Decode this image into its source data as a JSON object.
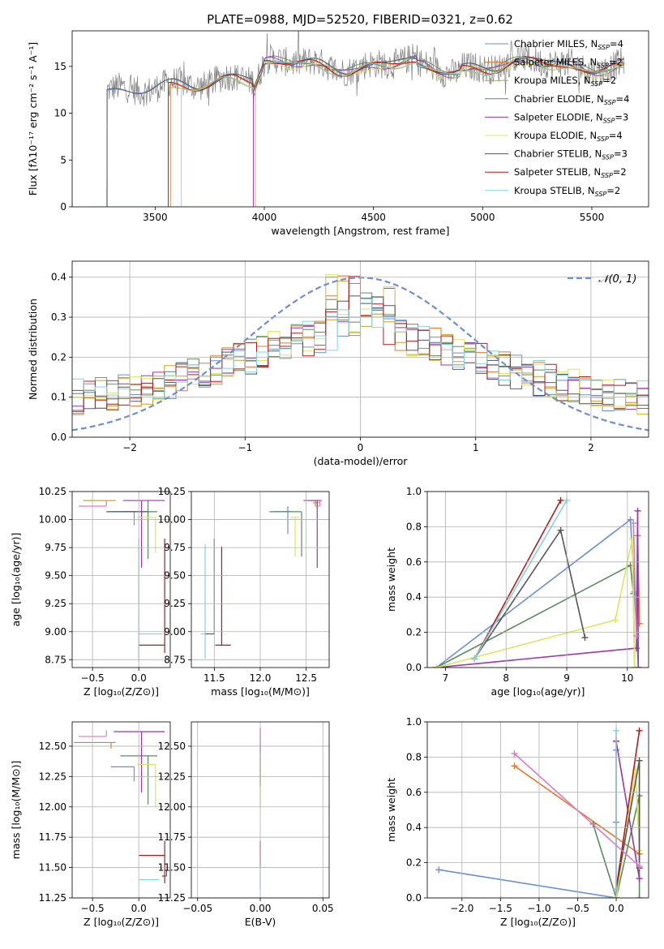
{
  "figure": {
    "title": "PLATE=0988, MJD=52520, FIBERID=0321, z=0.62"
  },
  "legend": [
    {
      "name": "Chabrier MILES, N",
      "sub": "SSP",
      "eq": "=4",
      "color": "#6b8fd6"
    },
    {
      "name": "Salpeter MILES, N",
      "sub": "SSP",
      "eq": "=2",
      "color": "#e07a2e"
    },
    {
      "name": "Kroupa MILES, N",
      "sub": "SSP",
      "eq": "=2",
      "color": "#c9a227"
    },
    {
      "name": "Chabrier ELODIE, N",
      "sub": "SSP",
      "eq": "=4",
      "color": "#5c8a5c"
    },
    {
      "name": "Salpeter ELODIE, N",
      "sub": "SSP",
      "eq": "=3",
      "color": "#9b34b0"
    },
    {
      "name": "Kroupa ELODIE, N",
      "sub": "SSP",
      "eq": "=4",
      "color": "#d9e85c"
    },
    {
      "name": "Chabrier STELIB, N",
      "sub": "SSP",
      "eq": "=3",
      "color": "#555555"
    },
    {
      "name": "Salpeter STELIB, N",
      "sub": "SSP",
      "eq": "=2",
      "color": "#b01c1c"
    },
    {
      "name": "Kroupa STELIB, N",
      "sub": "SSP",
      "eq": "=2",
      "color": "#7fd6de"
    }
  ],
  "chart_data": [
    {
      "id": "spectrum",
      "type": "line",
      "xlabel": "wavelength [Angstrom, rest frame]",
      "ylabel": "Flux [fλ10⁻¹⁷ erg cm⁻² s⁻¹ A⁻¹]",
      "xlim": [
        3120,
        5760
      ],
      "ylim": [
        0,
        18.8
      ],
      "xticks": [
        3500,
        4000,
        4500,
        5000,
        5500
      ],
      "yticks": [
        0,
        5,
        10,
        15
      ],
      "data_color": "#808080",
      "model_starts": [
        3280,
        3570,
        3560,
        3960,
        3950,
        3960,
        3280,
        3560,
        3620
      ],
      "data_x_range": [
        3200,
        5650
      ]
    },
    {
      "id": "residuals",
      "type": "step",
      "xlabel": "(data-model)/error",
      "ylabel": "Normed distribution",
      "xlim": [
        -2.5,
        2.5
      ],
      "ylim": [
        0,
        0.44
      ],
      "xticks": [
        -2,
        -1,
        0,
        1,
        2
      ],
      "yticks": [
        0.0,
        0.1,
        0.2,
        0.3,
        0.4
      ],
      "grid": true,
      "reference": {
        "name": "𝒩(0, 1)",
        "mean": 0,
        "sigma": 1,
        "color": "#6b8fd6",
        "style": "dashed"
      },
      "bin_width": 0.1
    },
    {
      "id": "age-vs-Z",
      "type": "errorbar",
      "xlabel": "Z [log₁₀(Z/Z⊙)]",
      "ylabel": "age  [log₁₀(age/yr)]",
      "xlim": [
        -0.72,
        0.34
      ],
      "ylim": [
        8.68,
        10.25
      ],
      "xticks": [
        -0.5,
        0.0
      ],
      "yticks": [
        8.75,
        9.0,
        9.25,
        9.5,
        9.75,
        10.0,
        10.25
      ],
      "points": [
        {
          "x": -0.05,
          "y": 10.07,
          "xerr": [
            0.25,
            0.0
          ],
          "yerr": [
            0.12,
            0.0
          ],
          "color": "#6b8fd6"
        },
        {
          "x": -0.3,
          "y": 10.17,
          "xerr": [
            0.3,
            0.05
          ],
          "yerr": [
            0.0,
            0.0
          ],
          "color": "#e07a2e"
        },
        {
          "x": -0.3,
          "y": 10.17,
          "xerr": [
            0.3,
            0.05
          ],
          "yerr": [
            0.0,
            0.0
          ],
          "color": "#c9a227"
        },
        {
          "x": 0.1,
          "y": 10.07,
          "xerr": [
            0.25,
            0.1
          ],
          "yerr": [
            0.42,
            0.1
          ],
          "color": "#5c8a5c"
        },
        {
          "x": 0.03,
          "y": 10.17,
          "xerr": [
            0.2,
            0.25
          ],
          "yerr": [
            0.6,
            0.0
          ],
          "color": "#9b34b0"
        },
        {
          "x": 0.18,
          "y": 10.02,
          "xerr": [
            0.2,
            0.0
          ],
          "yerr": [
            0.32,
            0.0
          ],
          "color": "#d9e85c"
        },
        {
          "x": -0.05,
          "y": 10.07,
          "xerr": [
            0.3,
            0.15
          ],
          "yerr": [
            0.0,
            0.0
          ],
          "color": "#555555"
        },
        {
          "x": 0.28,
          "y": 8.88,
          "xerr": [
            0.28,
            0.0
          ],
          "yerr": [
            0.07,
            0.95
          ],
          "color": "#b01c1c"
        },
        {
          "x": 0.0,
          "y": 8.98,
          "xerr": [
            0.0,
            0.26
          ],
          "yerr": [
            0.25,
            0.85
          ],
          "color": "#7fd6de"
        },
        {
          "x": -0.35,
          "y": 10.12,
          "xerr": [
            0.3,
            0.0
          ],
          "yerr": [
            0.0,
            0.05
          ],
          "color": "#e377c2"
        }
      ]
    },
    {
      "id": "age-vs-mass",
      "type": "errorbar",
      "xlabel": "mass [log₁₀(M/M⊙)]",
      "ylabel": "",
      "xlim": [
        11.25,
        12.75
      ],
      "ylim": [
        8.68,
        10.25
      ],
      "xticks": [
        11.5,
        12.0,
        12.5
      ],
      "yticks": [
        8.75,
        9.0,
        9.25,
        9.5,
        9.75,
        10.0,
        10.25
      ],
      "points": [
        {
          "x": 12.3,
          "y": 10.07,
          "xerr": [
            0.15,
            0.05
          ],
          "yerr": [
            0.2,
            0.05
          ],
          "color": "#6b8fd6"
        },
        {
          "x": 12.6,
          "y": 10.17,
          "xerr": [
            0.05,
            0.05
          ],
          "yerr": [
            0.05,
            0.0
          ],
          "color": "#e07a2e"
        },
        {
          "x": 12.62,
          "y": 10.15,
          "xerr": [
            0.05,
            0.03
          ],
          "yerr": [
            0.05,
            0.0
          ],
          "color": "#c9a227"
        },
        {
          "x": 12.45,
          "y": 10.07,
          "xerr": [
            0.35,
            0.0
          ],
          "yerr": [
            0.4,
            0.0
          ],
          "color": "#5c8a5c"
        },
        {
          "x": 12.62,
          "y": 10.17,
          "xerr": [
            0.15,
            0.05
          ],
          "yerr": [
            0.6,
            0.0
          ],
          "color": "#9b34b0"
        },
        {
          "x": 12.38,
          "y": 10.02,
          "xerr": [
            0.05,
            0.05
          ],
          "yerr": [
            0.35,
            0.0
          ],
          "color": "#d9e85c"
        },
        {
          "x": 11.5,
          "y": 8.98,
          "xerr": [
            0.1,
            0.0
          ],
          "yerr": [
            0.0,
            0.85
          ],
          "color": "#555555"
        },
        {
          "x": 11.58,
          "y": 8.88,
          "xerr": [
            0.07,
            0.1
          ],
          "yerr": [
            0.0,
            0.88
          ],
          "color": "#b01c1c"
        },
        {
          "x": 11.4,
          "y": 8.98,
          "xerr": [
            0.05,
            0.0
          ],
          "yerr": [
            0.22,
            0.8
          ],
          "color": "#7fd6de"
        },
        {
          "x": 12.65,
          "y": 10.12,
          "xerr": [
            0.05,
            0.0
          ],
          "yerr": [
            0.0,
            0.05
          ],
          "color": "#e377c2"
        }
      ]
    },
    {
      "id": "weight-vs-age",
      "type": "line",
      "xlabel": "age  [log₁₀(age/yr)]",
      "ylabel": "mass weight",
      "xlim": [
        6.7,
        10.35
      ],
      "ylim": [
        0,
        1.0
      ],
      "xticks": [
        7,
        8,
        9,
        10
      ],
      "yticks": [
        0.0,
        0.2,
        0.4,
        0.6,
        0.8,
        1.0
      ],
      "grid": true,
      "series": [
        {
          "color": "#6b8fd6",
          "x": [
            6.85,
            10.05,
            10.12,
            10.18
          ],
          "y": [
            0.0,
            0.84,
            0.43,
            0.0
          ]
        },
        {
          "color": "#e07a2e",
          "x": [
            10.17,
            10.2
          ],
          "y": [
            0.75,
            0.25
          ]
        },
        {
          "color": "#5c8a5c",
          "x": [
            6.85,
            10.05,
            10.1,
            10.12
          ],
          "y": [
            0.0,
            0.58,
            0.42,
            0.0
          ]
        },
        {
          "color": "#9b34b0",
          "x": [
            6.85,
            10.15,
            10.17,
            10.18
          ],
          "y": [
            0.0,
            0.11,
            0.89,
            0.0
          ]
        },
        {
          "color": "#d9e85c",
          "x": [
            6.85,
            9.8,
            10.08,
            10.12
          ],
          "y": [
            0.0,
            0.27,
            0.73,
            0.0
          ]
        },
        {
          "color": "#555555",
          "x": [
            7.48,
            8.9,
            9.3
          ],
          "y": [
            0.05,
            0.78,
            0.17
          ]
        },
        {
          "color": "#b01c1c",
          "x": [
            7.48,
            8.9
          ],
          "y": [
            0.05,
            0.95
          ]
        },
        {
          "color": "#7fd6de",
          "x": [
            7.48,
            9.0
          ],
          "y": [
            0.05,
            0.95
          ]
        },
        {
          "color": "#e377c2",
          "x": [
            10.1,
            10.15
          ],
          "y": [
            0.82,
            0.18
          ]
        }
      ]
    },
    {
      "id": "mass-vs-Z",
      "type": "errorbar",
      "xlabel": "Z [log₁₀(Z/Z⊙)]",
      "ylabel": "mass [log₁₀(M/M⊙)]",
      "xlim": [
        -0.72,
        0.34
      ],
      "ylim": [
        11.25,
        12.7
      ],
      "xticks": [
        -0.5,
        0.0
      ],
      "yticks": [
        11.25,
        11.5,
        11.75,
        12.0,
        12.25,
        12.5
      ],
      "points": [
        {
          "x": -0.05,
          "y": 12.33,
          "xerr": [
            0.25,
            0.0
          ],
          "yerr": [
            0.12,
            0.0
          ],
          "color": "#6b8fd6"
        },
        {
          "x": -0.3,
          "y": 12.53,
          "xerr": [
            0.4,
            0.05
          ],
          "yerr": [
            0.05,
            0.0
          ],
          "color": "#e07a2e"
        },
        {
          "x": 0.1,
          "y": 12.42,
          "xerr": [
            0.3,
            0.1
          ],
          "yerr": [
            0.4,
            0.0
          ],
          "color": "#5c8a5c"
        },
        {
          "x": 0.03,
          "y": 12.62,
          "xerr": [
            0.3,
            0.25
          ],
          "yerr": [
            0.5,
            0.0
          ],
          "color": "#9b34b0"
        },
        {
          "x": 0.18,
          "y": 12.35,
          "xerr": [
            0.2,
            0.0
          ],
          "yerr": [
            0.35,
            0.0
          ],
          "color": "#d9e85c"
        },
        {
          "x": 0.3,
          "y": 11.43,
          "xerr": [
            0.05,
            0.0
          ],
          "yerr": [
            0.0,
            0.05
          ],
          "color": "#555555"
        },
        {
          "x": 0.28,
          "y": 11.6,
          "xerr": [
            0.28,
            0.0
          ],
          "yerr": [
            0.23,
            0.12
          ],
          "color": "#b01c1c"
        },
        {
          "x": 0.0,
          "y": 11.4,
          "xerr": [
            0.0,
            0.22
          ],
          "yerr": [
            0.0,
            0.0
          ],
          "color": "#7fd6de"
        },
        {
          "x": -0.35,
          "y": 12.58,
          "xerr": [
            0.3,
            0.0
          ],
          "yerr": [
            0.0,
            0.05
          ],
          "color": "#e377c2"
        }
      ]
    },
    {
      "id": "mass-vs-EBV",
      "type": "errorbar",
      "xlabel": "E(B-V)",
      "ylabel": "",
      "xlim": [
        -0.055,
        0.055
      ],
      "ylim": [
        11.25,
        12.7
      ],
      "xticks": [
        -0.05,
        0.0,
        0.05
      ],
      "yticks": [
        11.25,
        11.5,
        11.75,
        12.0,
        12.25,
        12.5
      ],
      "points": [
        {
          "x": 0.0,
          "y": 12.55,
          "xerr": [
            0,
            0
          ],
          "yerr": [
            0.1,
            0.1
          ],
          "color": "#9b34b0"
        },
        {
          "x": 0.0,
          "y": 12.3,
          "xerr": [
            0,
            0
          ],
          "yerr": [
            0.3,
            0.1
          ],
          "color": "#d9e85c"
        },
        {
          "x": 0.0,
          "y": 12.42,
          "xerr": [
            0,
            0
          ],
          "yerr": [
            0.25,
            0.1
          ],
          "color": "#5c8a5c"
        },
        {
          "x": 0.0,
          "y": 11.6,
          "xerr": [
            0,
            0
          ],
          "yerr": [
            0.1,
            0.12
          ],
          "color": "#b01c1c"
        },
        {
          "x": 0.0,
          "y": 11.42,
          "xerr": [
            0,
            0
          ],
          "yerr": [
            0.1,
            0.1
          ],
          "color": "#7fd6de"
        }
      ]
    },
    {
      "id": "weight-vs-Z",
      "type": "line",
      "xlabel": "Z [log₁₀(Z/Z⊙)]",
      "ylabel": "mass weight",
      "xlim": [
        -2.45,
        0.42
      ],
      "ylim": [
        0,
        1.0
      ],
      "xticks": [
        -2.0,
        -1.5,
        -1.0,
        -0.5,
        0.0
      ],
      "yticks": [
        0.0,
        0.2,
        0.4,
        0.6,
        0.8,
        1.0
      ],
      "grid": true,
      "series": [
        {
          "color": "#6b8fd6",
          "x": [
            -2.3,
            0.0,
            0.0,
            0.0
          ],
          "y": [
            0.16,
            0.0,
            0.84,
            0.43
          ]
        },
        {
          "color": "#e07a2e",
          "x": [
            -1.32,
            0.3
          ],
          "y": [
            0.75,
            0.25
          ]
        },
        {
          "color": "#5c8a5c",
          "x": [
            -0.3,
            0.0,
            0.3,
            0.3
          ],
          "y": [
            0.42,
            0.0,
            0.58,
            0.0
          ]
        },
        {
          "color": "#9b34b0",
          "x": [
            0.0,
            0.0,
            0.3
          ],
          "y": [
            0.89,
            0.89,
            0.11
          ]
        },
        {
          "color": "#d9e85c",
          "x": [
            0.0,
            0.25,
            0.3
          ],
          "y": [
            0.0,
            0.73,
            0.27
          ]
        },
        {
          "color": "#555555",
          "x": [
            0.0,
            0.3,
            0.3
          ],
          "y": [
            0.05,
            0.78,
            0.17
          ]
        },
        {
          "color": "#b01c1c",
          "x": [
            0.0,
            0.3
          ],
          "y": [
            0.05,
            0.95
          ]
        },
        {
          "color": "#7fd6de",
          "x": [
            0.0,
            0.0
          ],
          "y": [
            0.05,
            0.95
          ]
        },
        {
          "color": "#e377c2",
          "x": [
            -1.32,
            0.3
          ],
          "y": [
            0.82,
            0.18
          ]
        }
      ]
    }
  ]
}
